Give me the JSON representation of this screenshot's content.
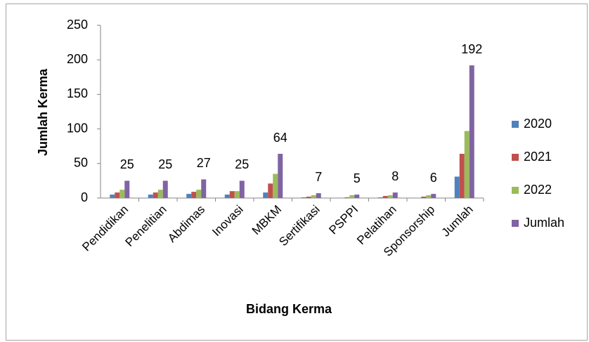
{
  "chart_data": {
    "type": "bar",
    "x_label": "Bidang Kerma",
    "y_label": "Jumlah Kerma",
    "categories": [
      "Pendidikan",
      "Penelitian",
      "Abdimas",
      "Inovasi",
      "MBKM",
      "Sertifikasi",
      "PSPPI",
      "Pelatihan",
      "Sponsorship",
      "Jumlah"
    ],
    "series": [
      {
        "name": "2020",
        "color": "#4f81bd",
        "values": [
          5,
          5,
          6,
          5,
          8,
          1,
          0,
          1,
          0,
          31
        ]
      },
      {
        "name": "2021",
        "color": "#c0504d",
        "values": [
          8,
          8,
          9,
          10,
          21,
          2,
          1,
          3,
          2,
          64
        ]
      },
      {
        "name": "2022",
        "color": "#9bbb59",
        "values": [
          12,
          12,
          12,
          10,
          35,
          4,
          4,
          4,
          4,
          97
        ]
      },
      {
        "name": "Jumlah",
        "color": "#8064a2",
        "values": [
          25,
          25,
          27,
          25,
          64,
          7,
          5,
          8,
          6,
          192
        ],
        "data_labels": true
      }
    ],
    "ylim": [
      0,
      250
    ],
    "yticks": [
      0,
      50,
      100,
      150,
      200,
      250
    ],
    "grid": false,
    "legend": "right"
  }
}
